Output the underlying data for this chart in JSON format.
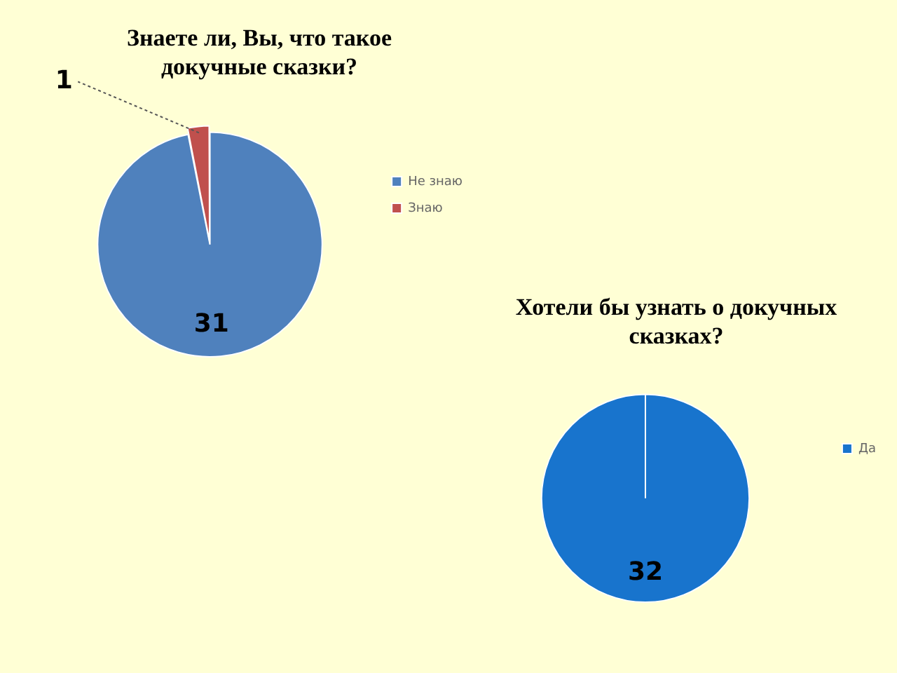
{
  "chart_data": [
    {
      "type": "pie",
      "title": "Знаете ли, Вы, что такое докучные сказки?",
      "categories": [
        "Не знаю",
        "Знаю"
      ],
      "values": [
        31,
        1
      ],
      "colors": [
        "#4f81bd",
        "#c0504d"
      ],
      "data_labels": true,
      "legend": "right"
    },
    {
      "type": "pie",
      "title": "Хотели бы узнать о докучных сказках?",
      "categories": [
        "Да"
      ],
      "values": [
        32
      ],
      "colors": [
        "#1874cd"
      ],
      "data_labels": true,
      "legend": "right"
    }
  ]
}
